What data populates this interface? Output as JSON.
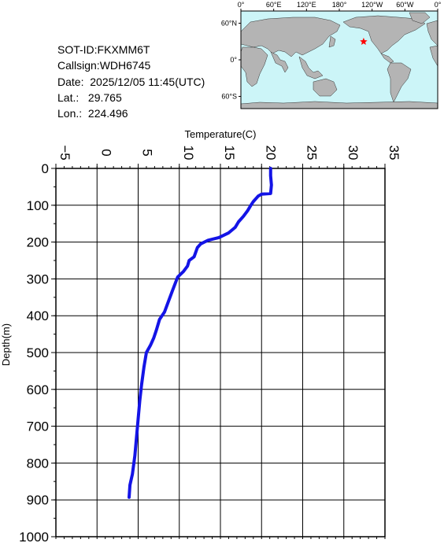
{
  "info": {
    "sot_id": "SOT-ID:FKXMM6T",
    "callsign": "Callsign:WDH6745",
    "date": "Date:  2025/12/05 11:45(UTC)",
    "lat": "Lat.:   29.765",
    "lon": "Lon.:  224.496"
  },
  "map": {
    "lon_labels": [
      "0°",
      "60°E",
      "120°E",
      "180°",
      "120°W",
      "60°W",
      "0°"
    ],
    "lat_labels": [
      "60°N",
      "0°",
      "60°S"
    ],
    "marker_lon": 224.496,
    "marker_lat": 29.765,
    "ocean_color": "#ccf5f8",
    "land_color": "#b4b4b4",
    "marker_color": "#ff0000",
    "marker_icon": "star-icon"
  },
  "chart_data": {
    "type": "line",
    "xlabel": "Temperature(C)",
    "ylabel": "Depth(m)",
    "xlim": [
      -5,
      35
    ],
    "ylim": [
      0,
      1000
    ],
    "x_ticks": [
      "-5",
      "0",
      "5",
      "10",
      "15",
      "20",
      "25",
      "30",
      "35"
    ],
    "y_ticks": [
      "0",
      "100",
      "200",
      "300",
      "400",
      "500",
      "600",
      "700",
      "800",
      "900",
      "1000"
    ],
    "x_label_position": "top",
    "y_axis_inverted": true,
    "grid": true,
    "line_color": "#1414e6",
    "series": [
      {
        "points": [
          [
            21.1,
            0
          ],
          [
            21.1,
            20
          ],
          [
            21.2,
            45
          ],
          [
            21.1,
            68
          ],
          [
            20.0,
            70
          ],
          [
            19.6,
            75
          ],
          [
            19.4,
            80
          ],
          [
            19.0,
            90
          ],
          [
            18.7,
            100
          ],
          [
            18.3,
            115
          ],
          [
            17.8,
            130
          ],
          [
            17.2,
            145
          ],
          [
            16.8,
            160
          ],
          [
            16.0,
            175
          ],
          [
            14.8,
            188
          ],
          [
            13.5,
            195
          ],
          [
            12.6,
            205
          ],
          [
            12.2,
            215
          ],
          [
            11.8,
            240
          ],
          [
            11.2,
            250
          ],
          [
            11.0,
            265
          ],
          [
            10.5,
            280
          ],
          [
            9.8,
            295
          ],
          [
            9.2,
            330
          ],
          [
            8.7,
            360
          ],
          [
            8.2,
            390
          ],
          [
            7.6,
            410
          ],
          [
            7.2,
            440
          ],
          [
            6.9,
            460
          ],
          [
            6.5,
            480
          ],
          [
            6.0,
            500
          ],
          [
            5.7,
            540
          ],
          [
            5.4,
            590
          ],
          [
            5.2,
            630
          ],
          [
            5.0,
            680
          ],
          [
            4.8,
            730
          ],
          [
            4.6,
            780
          ],
          [
            4.3,
            830
          ],
          [
            4.0,
            860
          ],
          [
            3.9,
            893
          ]
        ]
      }
    ]
  }
}
